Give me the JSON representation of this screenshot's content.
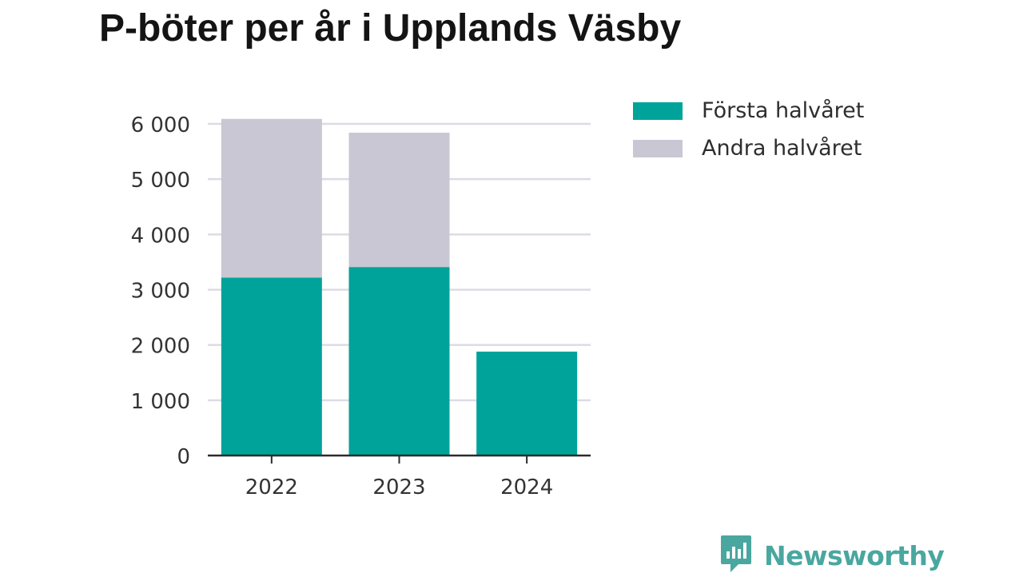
{
  "chart_data": {
    "type": "bar",
    "stacked": true,
    "title": "P-böter per år i Upplands Väsby",
    "xlabel": "",
    "ylabel": "",
    "categories": [
      "2022",
      "2023",
      "2024"
    ],
    "series": [
      {
        "name": "Första halvåret",
        "color": "#00a39a",
        "values": [
          3220,
          3410,
          1880
        ]
      },
      {
        "name": "Andra halvåret",
        "color": "#c8c7d3",
        "values": [
          2870,
          2430,
          0
        ]
      }
    ],
    "ylim": [
      0,
      6000
    ],
    "yticks": [
      0,
      1000,
      2000,
      3000,
      4000,
      5000,
      6000
    ],
    "ytick_labels": [
      "0",
      "1 000",
      "2 000",
      "3 000",
      "4 000",
      "5 000",
      "6 000"
    ],
    "grid": true,
    "legend_position": "top-right"
  },
  "brand": {
    "label": "Newsworthy",
    "icon": "newsworthy-logo-icon",
    "color": "#4aa7a0"
  }
}
